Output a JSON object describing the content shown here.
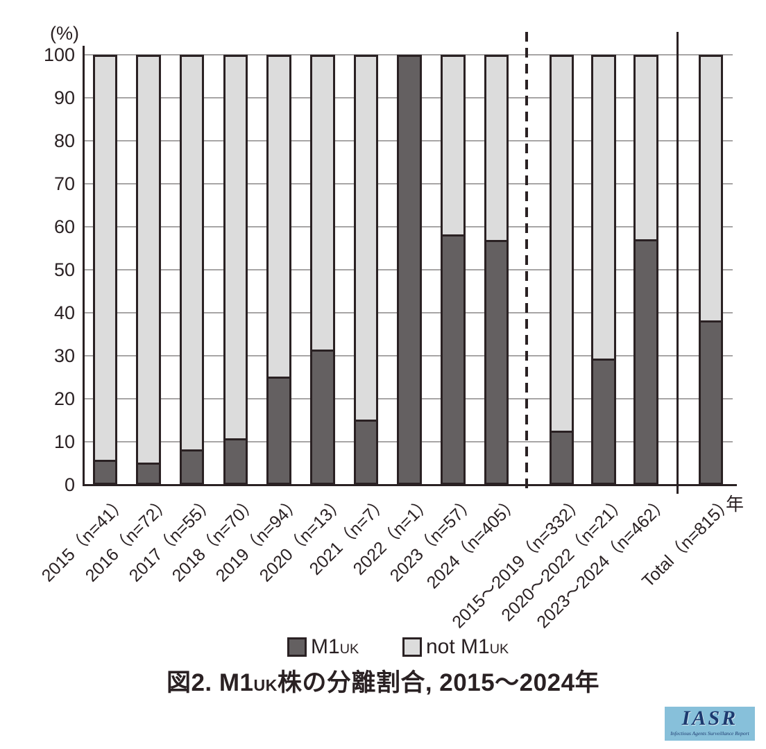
{
  "y_axis": {
    "unit": "(%)"
  },
  "x_axis": {
    "unit": "年"
  },
  "legend": {
    "items": [
      {
        "main": "M1",
        "small": "UK",
        "color": "#646061"
      },
      {
        "main": "not M1",
        "small": "UK",
        "color": "#dcdcdc"
      }
    ]
  },
  "title": {
    "part1": "図2. M1",
    "small": "UK",
    "part2": "株の分離割合, 2015～2024年"
  },
  "logo": {
    "name": "IASR",
    "caption": "Infectious Agents Surveillance Report"
  },
  "chart_data": {
    "type": "bar",
    "stacked": true,
    "title": "図2. M1UK株の分離割合, 2015～2024年",
    "ylabel": "(%)",
    "xlabel": "年",
    "ylim": [
      0,
      100
    ],
    "yticks": [
      0,
      10,
      20,
      30,
      40,
      50,
      60,
      70,
      80,
      90,
      100
    ],
    "grid": true,
    "legend_position": "bottom",
    "categories": [
      "2015（n=41）",
      "2016（n=72）",
      "2017（n=55）",
      "2018（n=70）",
      "2019（n=94）",
      "2020（n=13）",
      "2021（n=7）",
      "2022（n=1）",
      "2023（n=57）",
      "2024（n=405）",
      "2015～2019（n=332）",
      "2020～2022（n=21）",
      "2023～2024（n=462）",
      "Total（n=815）"
    ],
    "series": [
      {
        "name": "M1UK",
        "color": "#646061",
        "values": [
          4.9,
          4.2,
          7.3,
          10.0,
          24.5,
          30.8,
          14.3,
          100.0,
          57.9,
          56.5,
          11.7,
          28.6,
          56.7,
          37.7
        ]
      },
      {
        "name": "not M1UK",
        "color": "#dcdcdc",
        "values": [
          95.1,
          95.8,
          92.7,
          90.0,
          75.5,
          69.2,
          85.7,
          0.0,
          42.1,
          43.5,
          88.3,
          71.4,
          43.3,
          62.3
        ]
      }
    ],
    "separators": [
      {
        "style": "dashed",
        "after_category": "2024（n=405）"
      },
      {
        "style": "solid",
        "after_category": "2023～2024（n=462）"
      }
    ]
  }
}
